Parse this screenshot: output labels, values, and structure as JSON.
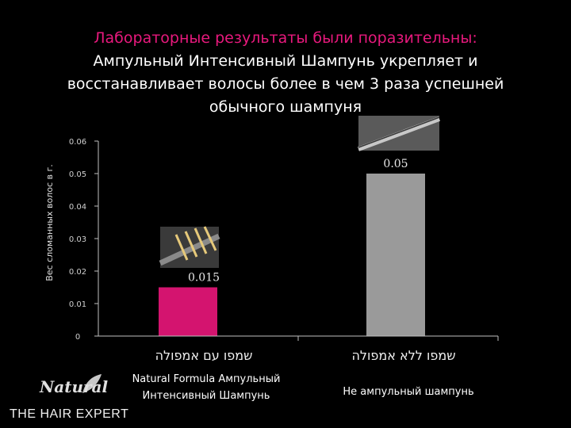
{
  "title": {
    "line1": "Лабораторные результаты были поразительны:",
    "line2": "Ампульный Интенсивный Шампунь укрепляет и восстанавливает волосы более в чем 3 раза успешней обычного шампуня"
  },
  "colors": {
    "accent": "#e8197d",
    "bar1": "#d4146f",
    "bar2": "#9a9a9a",
    "axis": "#bfbfbf"
  },
  "chart_data": {
    "type": "bar",
    "ylabel": "Вес сломанных волос в г.",
    "ylim": [
      0,
      0.06
    ],
    "yticks": [
      "0",
      "0.01",
      "0.02",
      "0.03",
      "0.04",
      "0.05",
      "0.06"
    ],
    "categories": [
      "שמפו עם אמפולה",
      "שמפו ללא אמפולה"
    ],
    "values": [
      0.015,
      0.05
    ],
    "data_labels": [
      "0.015",
      "0.05"
    ],
    "grid": false
  },
  "category_descriptions": [
    "Natural Formula Ампульный Интенсивный Шампунь",
    "Не ампульный шампунь"
  ],
  "logo": {
    "brand": "Natural",
    "tagline": "THE HAIR EXPERT",
    "icon": "leaf-icon"
  }
}
